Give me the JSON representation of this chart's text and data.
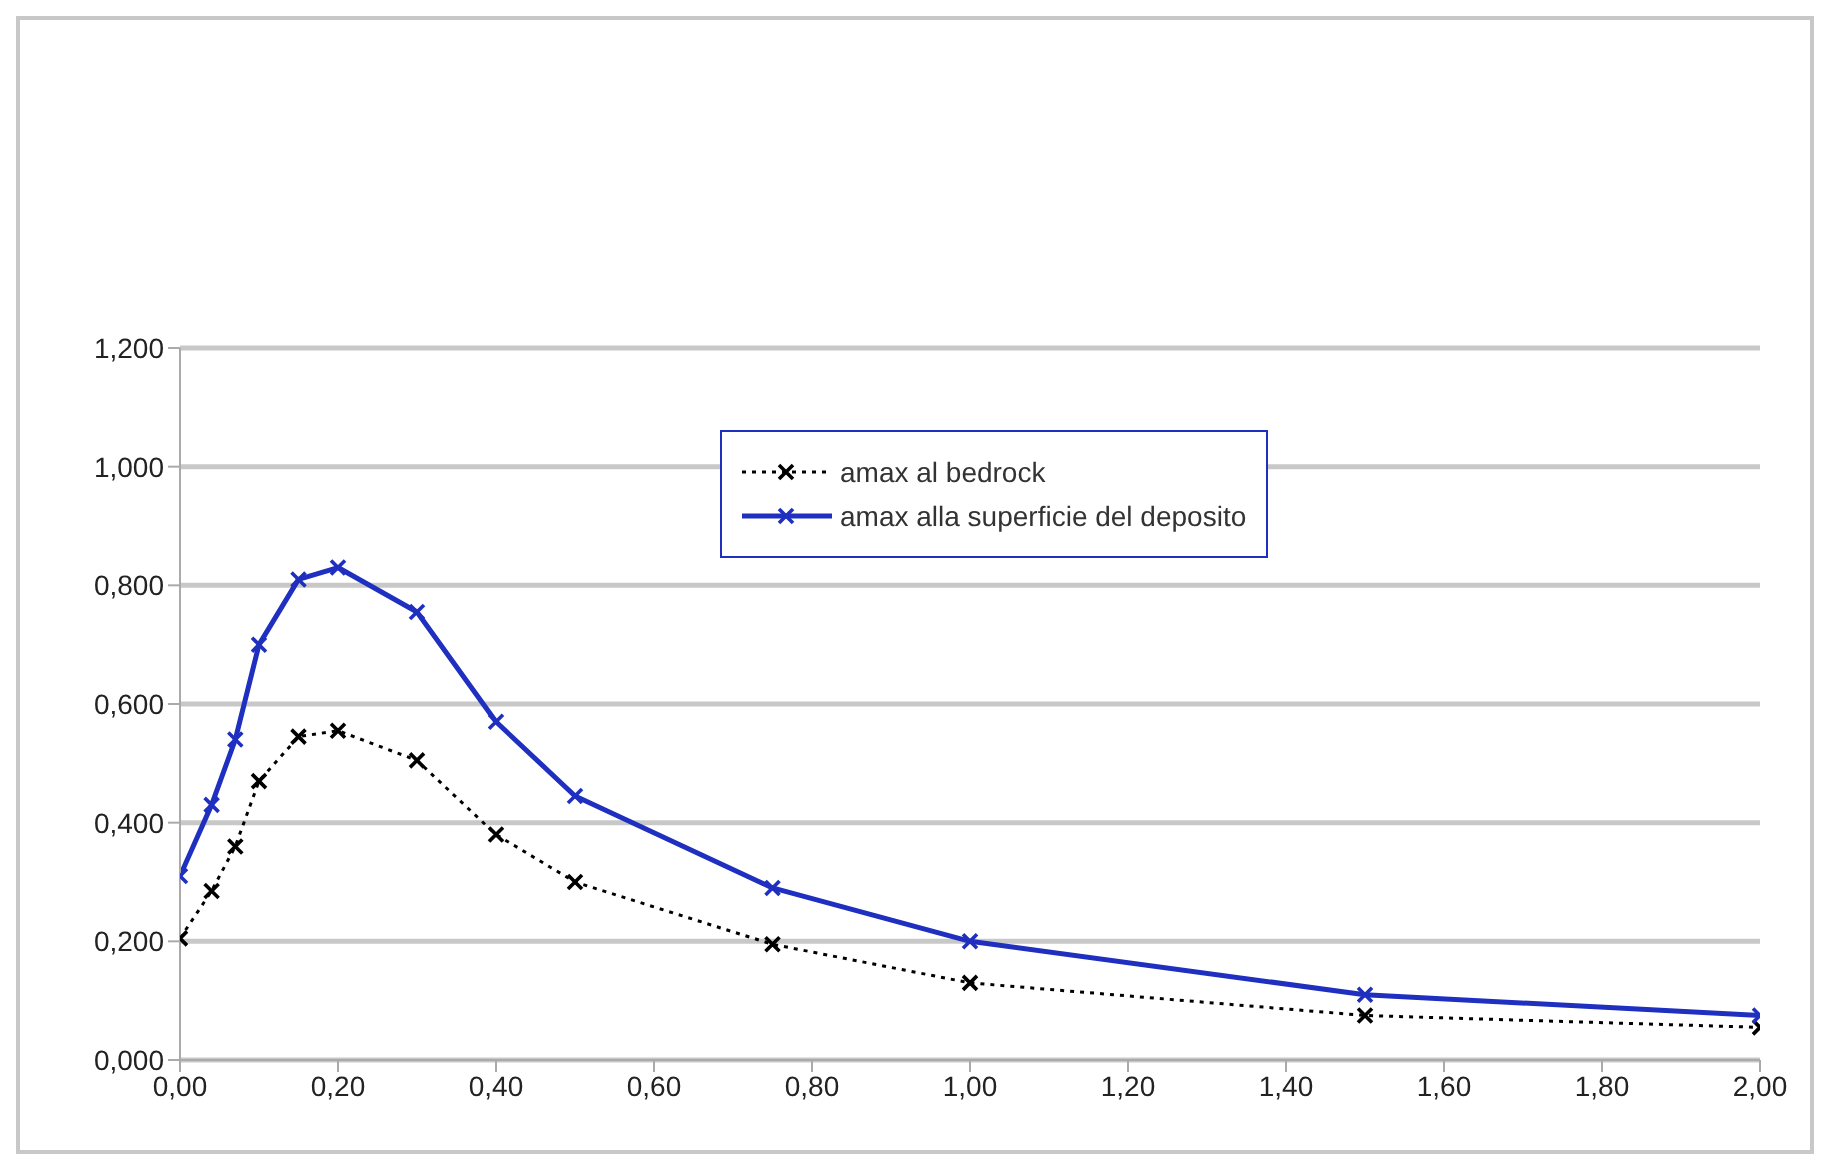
{
  "chart_data": {
    "type": "line",
    "x": [
      0,
      0.04,
      0.07,
      0.1,
      0.15,
      0.2,
      0.3,
      0.4,
      0.5,
      0.75,
      1,
      1.5,
      2
    ],
    "series": [
      {
        "name": "amax al bedrock",
        "color": "#000000",
        "line_style": "dotted",
        "marker": "cross",
        "values": [
          0.205,
          0.285,
          0.36,
          0.47,
          0.545,
          0.555,
          0.505,
          0.38,
          0.3,
          0.195,
          0.13,
          0.075,
          0.055
        ]
      },
      {
        "name": "amax alla superficie del deposito",
        "color": "#1f2fbf",
        "line_style": "solid",
        "marker": "cross",
        "values": [
          0.31,
          0.43,
          0.54,
          0.7,
          0.81,
          0.83,
          0.755,
          0.57,
          0.445,
          0.29,
          0.2,
          0.11,
          0.075
        ]
      }
    ],
    "xlim": [
      0,
      2
    ],
    "xticks": [
      {
        "value": 0,
        "label": "0,00"
      },
      {
        "value": 0.2,
        "label": "0,20"
      },
      {
        "value": 0.4,
        "label": "0,40"
      },
      {
        "value": 0.6,
        "label": "0,60"
      },
      {
        "value": 0.8,
        "label": "0,80"
      },
      {
        "value": 1,
        "label": "1,00"
      },
      {
        "value": 1.2,
        "label": "1,20"
      },
      {
        "value": 1.4,
        "label": "1,40"
      },
      {
        "value": 1.6,
        "label": "1,60"
      },
      {
        "value": 1.8,
        "label": "1,80"
      },
      {
        "value": 2,
        "label": "2,00"
      }
    ],
    "ylim": [
      0,
      1.2
    ],
    "yticks": [
      {
        "value": 0,
        "label": "0,000"
      },
      {
        "value": 0.2,
        "label": "0,200"
      },
      {
        "value": 0.4,
        "label": "0,400"
      },
      {
        "value": 0.6,
        "label": "0,600"
      },
      {
        "value": 0.8,
        "label": "0,800"
      },
      {
        "value": 1,
        "label": "1,000"
      },
      {
        "value": 1.2,
        "label": "1,200"
      }
    ],
    "grid": "y",
    "legend": "top"
  }
}
